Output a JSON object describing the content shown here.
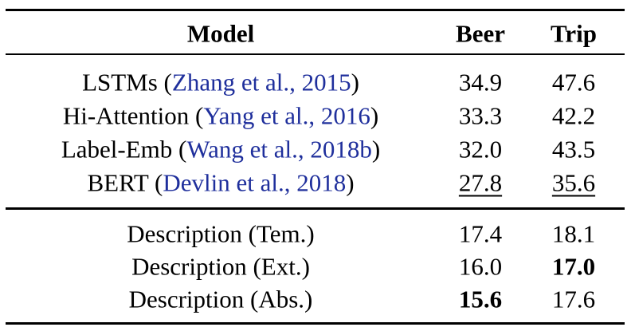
{
  "table": {
    "header": [
      "Model",
      "Beer",
      "Trip"
    ],
    "groups": [
      {
        "rows": [
          {
            "model": [
              "LSTMs (",
              "Zhang et al., 2015",
              ")"
            ],
            "cells": [
              {
                "text": "34.9"
              },
              {
                "text": "47.6"
              }
            ]
          },
          {
            "model": [
              "Hi-Attention (",
              "Yang et al., 2016",
              ")"
            ],
            "cells": [
              {
                "text": "33.3"
              },
              {
                "text": "42.2"
              }
            ]
          },
          {
            "model": [
              "Label-Emb (",
              "Wang et al., 2018b",
              ")"
            ],
            "cells": [
              {
                "text": "32.0"
              },
              {
                "text": "43.5"
              }
            ]
          },
          {
            "model": [
              "BERT (",
              "Devlin et al., 2018",
              ")"
            ],
            "cells": [
              {
                "text": "27.8",
                "style": "underline"
              },
              {
                "text": "35.6",
                "style": "underline"
              }
            ]
          }
        ]
      },
      {
        "rows": [
          {
            "model": [
              "Description (Tem.)"
            ],
            "cells": [
              {
                "text": "17.4"
              },
              {
                "text": "18.1"
              }
            ]
          },
          {
            "model": [
              "Description (Ext.)"
            ],
            "cells": [
              {
                "text": "16.0"
              },
              {
                "text": "17.0",
                "style": "bold"
              }
            ]
          },
          {
            "model": [
              "Description (Abs.)"
            ],
            "cells": [
              {
                "text": "15.6",
                "style": "bold"
              },
              {
                "text": "17.6"
              }
            ]
          }
        ]
      }
    ]
  }
}
